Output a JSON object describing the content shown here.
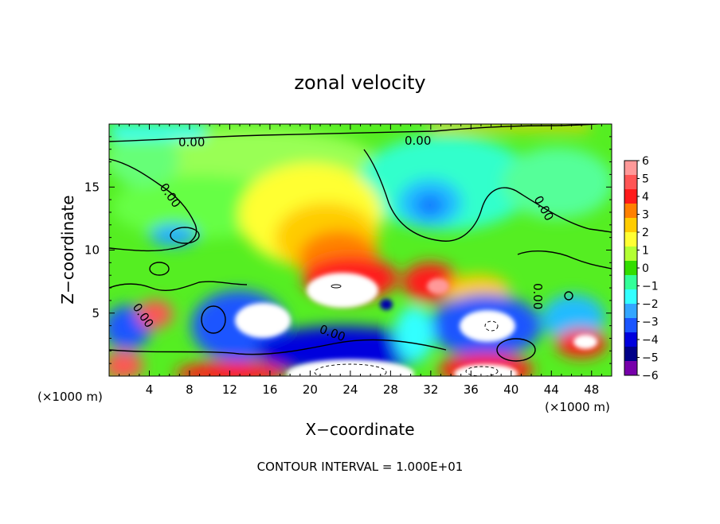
{
  "chart_data": {
    "type": "heatmap",
    "title": "zonal velocity",
    "xlabel": "X−coordinate",
    "ylabel": "Z−coordinate",
    "x_unit_left": "(×1000 m)",
    "x_unit_right": "(×1000 m)",
    "xlim": [
      0,
      50
    ],
    "ylim": [
      0,
      20
    ],
    "xticks": [
      "4",
      "8",
      "12",
      "16",
      "20",
      "24",
      "28",
      "32",
      "36",
      "40",
      "44",
      "48"
    ],
    "yticks": [
      "5",
      "10",
      "15"
    ],
    "contour_labels": [
      "0.00",
      "0.00",
      "0.00",
      "0.00",
      "0.00",
      "0.00",
      "0.00"
    ],
    "footer": "CONTOUR INTERVAL = 1.000E+01",
    "colorbar": {
      "labels": [
        "6",
        "5",
        "4",
        "3",
        "2",
        "1",
        "0",
        "−1",
        "−2",
        "−3",
        "−4",
        "−5",
        "−6"
      ],
      "colors": [
        "#ff9999",
        "#ff5555",
        "#ff1a1a",
        "#ff8000",
        "#ffcc00",
        "#ffff33",
        "#b3ff33",
        "#33dd00",
        "#33ff99",
        "#33ffff",
        "#33a6ff",
        "#1a55ff",
        "#0000dd",
        "#000088",
        "#7700aa"
      ]
    }
  }
}
